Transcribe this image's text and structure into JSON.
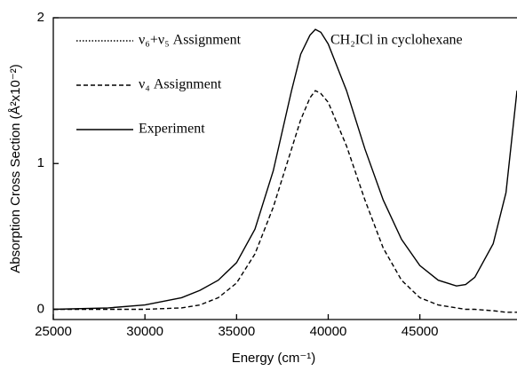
{
  "chart_data": {
    "type": "line",
    "annotation": "CH₂ICl in cyclohexane",
    "x_label": "Energy (cm⁻¹)",
    "y_label": "Absorption Cross Section (Å²x10⁻²)",
    "x": [
      25000,
      28000,
      30000,
      32000,
      33000,
      34000,
      35000,
      36000,
      37000,
      38000,
      38500,
      39000,
      39300,
      39600,
      40000,
      41000,
      42000,
      43000,
      44000,
      45000,
      46000,
      47000,
      47500,
      48000,
      49000,
      49700,
      50300
    ],
    "series": [
      {
        "name": "ν₆+ν₅ Assignment",
        "color": "#000000",
        "style": "dotted",
        "values": [
          null,
          null,
          null,
          null,
          null,
          null,
          null,
          null,
          null,
          null,
          null,
          null,
          null,
          null,
          null,
          null,
          null,
          null,
          null,
          null,
          null,
          null,
          null,
          null,
          null,
          null,
          null
        ]
      },
      {
        "name": "ν₄ Assignment",
        "color": "#000000",
        "style": "dashed",
        "values": [
          0,
          0,
          0,
          0.01,
          0.03,
          0.08,
          0.18,
          0.38,
          0.7,
          1.1,
          1.3,
          1.45,
          1.5,
          1.48,
          1.42,
          1.12,
          0.75,
          0.42,
          0.2,
          0.08,
          0.03,
          0.01,
          0,
          0,
          -0.01,
          -0.02,
          -0.02
        ]
      },
      {
        "name": "Experiment",
        "color": "#000000",
        "style": "solid",
        "values": [
          0,
          0.01,
          0.03,
          0.08,
          0.13,
          0.2,
          0.32,
          0.55,
          0.95,
          1.5,
          1.75,
          1.88,
          1.92,
          1.9,
          1.82,
          1.5,
          1.1,
          0.75,
          0.48,
          0.3,
          0.2,
          0.16,
          0.17,
          0.22,
          0.45,
          0.8,
          1.5
        ]
      }
    ],
    "xlim": [
      25000,
      50300
    ],
    "xticks": [
      25000,
      30000,
      35000,
      40000,
      45000
    ],
    "ylim": [
      -0.07,
      2
    ],
    "yticks": [
      0,
      1,
      2
    ]
  }
}
